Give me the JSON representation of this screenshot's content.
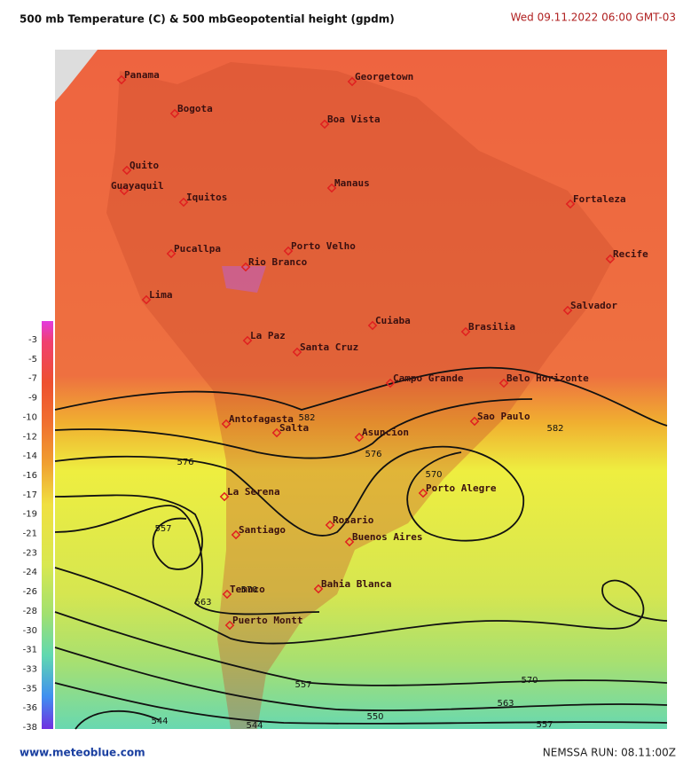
{
  "header": {
    "title": "500 mb Temperature (C)  & 500 mbGeopotential height (gpdm)",
    "date": "Wed 09.11.2022  06:00 GMT-03"
  },
  "legend": {
    "values": [
      -3,
      -5,
      -7,
      -9,
      -10,
      -12,
      -14,
      -16,
      -17,
      -19,
      -21,
      -23,
      -24,
      -26,
      -28,
      -30,
      -31,
      -33,
      -35,
      -36,
      -38
    ]
  },
  "cities": [
    "Panama",
    "Bogota",
    "Quito",
    "Guayaquil",
    "Iquitos",
    "Georgetown",
    "Boa Vista",
    "Manaus",
    "Fortaleza",
    "Recife",
    "Pucallpa",
    "Porto Velho",
    "Rio Branco",
    "Lima",
    "Salvador",
    "Cuiaba",
    "Brasilia",
    "La Paz",
    "Santa Cruz",
    "Campo Grande",
    "Belo Horizonte",
    "Antofagasta",
    "Salta",
    "Asuncion",
    "Sao Paulo",
    "Porto Alegre",
    "La Serena",
    "Santiago",
    "Rosario",
    "Buenos Aires",
    "Temuco",
    "Bahia Blanca",
    "Puerto Montt"
  ],
  "contour_labels": [
    "582",
    "582",
    "576",
    "576",
    "570",
    "557",
    "563",
    "570",
    "570",
    "563",
    "557",
    "557",
    "550",
    "544",
    "544"
  ],
  "footer": {
    "site": "www.meteoblue.com",
    "run": "NEMSSA  RUN: 08.11:00Z"
  }
}
